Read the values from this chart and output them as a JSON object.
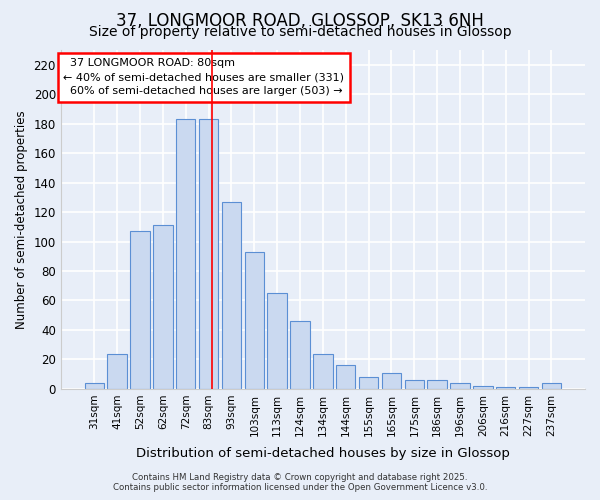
{
  "title_line1": "37, LONGMOOR ROAD, GLOSSOP, SK13 6NH",
  "title_line2": "Size of property relative to semi-detached houses in Glossop",
  "xlabel": "Distribution of semi-detached houses by size in Glossop",
  "ylabel": "Number of semi-detached properties",
  "categories": [
    "31sqm",
    "41sqm",
    "52sqm",
    "62sqm",
    "72sqm",
    "83sqm",
    "93sqm",
    "103sqm",
    "113sqm",
    "124sqm",
    "134sqm",
    "144sqm",
    "155sqm",
    "165sqm",
    "175sqm",
    "186sqm",
    "196sqm",
    "206sqm",
    "216sqm",
    "227sqm",
    "237sqm"
  ],
  "values": [
    4,
    24,
    107,
    111,
    183,
    183,
    127,
    93,
    65,
    46,
    24,
    16,
    8,
    11,
    6,
    6,
    4,
    2,
    1,
    1,
    4
  ],
  "bar_color": "#cad9f0",
  "bar_edge_color": "#5b8fd4",
  "red_line_x": 5.15,
  "annotation_title": "  37 LONGMOOR ROAD: 80sqm",
  "annotation_line2": "← 40% of semi-detached houses are smaller (331)",
  "annotation_line3": "  60% of semi-detached houses are larger (503) →",
  "ylim": [
    0,
    230
  ],
  "yticks": [
    0,
    20,
    40,
    60,
    80,
    100,
    120,
    140,
    160,
    180,
    200,
    220
  ],
  "background_color": "#e8eef8",
  "grid_color": "#ffffff",
  "title_fontsize": 12,
  "subtitle_fontsize": 10,
  "footer_line1": "Contains HM Land Registry data © Crown copyright and database right 2025.",
  "footer_line2": "Contains public sector information licensed under the Open Government Licence v3.0."
}
